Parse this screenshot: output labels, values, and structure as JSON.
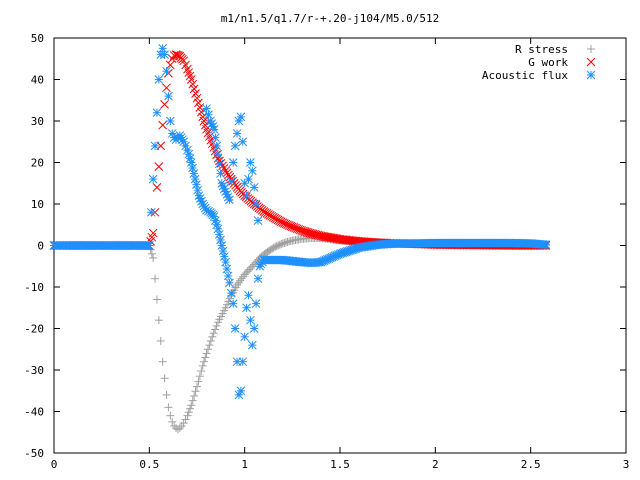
{
  "chart_data": {
    "type": "scatter",
    "title": "m1/n1.5/q1.7/r-+.20-j104/M5.0/512",
    "xlabel": "",
    "ylabel": "",
    "xlim": [
      0,
      3
    ],
    "ylim": [
      -50,
      50
    ],
    "xticks": [
      "0",
      "0.5",
      "1",
      "1.5",
      "2",
      "2.5",
      "3"
    ],
    "yticks": [
      "50",
      "40",
      "30",
      "20",
      "10",
      "0",
      "-10",
      "-20",
      "-30",
      "-40",
      "-50"
    ],
    "xtick_values": [
      0,
      0.5,
      1,
      1.5,
      2,
      2.5,
      3
    ],
    "ytick_values": [
      50,
      40,
      30,
      20,
      10,
      0,
      -10,
      -20,
      -30,
      -40,
      -50
    ],
    "grid": false,
    "legend_position": "top-right",
    "series": [
      {
        "name": "R stress",
        "marker": "plus",
        "color": "#a0a0a0",
        "points": [
          [
            0.0,
            0
          ],
          [
            0.5,
            0
          ],
          [
            0.52,
            -3
          ],
          [
            0.53,
            -8
          ],
          [
            0.54,
            -13
          ],
          [
            0.55,
            -18
          ],
          [
            0.56,
            -23
          ],
          [
            0.57,
            -28
          ],
          [
            0.58,
            -32
          ],
          [
            0.59,
            -36
          ],
          [
            0.6,
            -39
          ],
          [
            0.61,
            -41
          ],
          [
            0.62,
            -42.5
          ],
          [
            0.63,
            -43.5
          ],
          [
            0.64,
            -44
          ],
          [
            0.65,
            -44.3
          ],
          [
            0.66,
            -44
          ],
          [
            0.67,
            -43.5
          ],
          [
            0.68,
            -42.8
          ],
          [
            0.7,
            -41
          ],
          [
            0.72,
            -38.5
          ],
          [
            0.75,
            -34
          ],
          [
            0.78,
            -29
          ],
          [
            0.8,
            -26
          ],
          [
            0.83,
            -22
          ],
          [
            0.86,
            -18.5
          ],
          [
            0.9,
            -15
          ],
          [
            0.93,
            -12
          ],
          [
            0.96,
            -9.5
          ],
          [
            1.0,
            -7
          ],
          [
            1.04,
            -5
          ],
          [
            1.08,
            -3
          ],
          [
            1.12,
            -1.5
          ],
          [
            1.16,
            -0.3
          ],
          [
            1.2,
            0.5
          ],
          [
            1.25,
            1.2
          ],
          [
            1.3,
            1.6
          ],
          [
            1.35,
            1.8
          ],
          [
            1.4,
            1.8
          ],
          [
            1.45,
            1.5
          ],
          [
            1.5,
            1.2
          ],
          [
            1.6,
            0.8
          ],
          [
            1.7,
            0.5
          ],
          [
            1.8,
            0.4
          ],
          [
            1.9,
            0.3
          ],
          [
            2.0,
            0.3
          ],
          [
            2.2,
            0.2
          ],
          [
            2.4,
            0.1
          ],
          [
            2.58,
            0.1
          ]
        ]
      },
      {
        "name": "G work",
        "marker": "cross",
        "color": "#ff0000",
        "points": [
          [
            0.0,
            0
          ],
          [
            0.5,
            0
          ],
          [
            0.52,
            3
          ],
          [
            0.53,
            8
          ],
          [
            0.54,
            14
          ],
          [
            0.55,
            19
          ],
          [
            0.56,
            24
          ],
          [
            0.57,
            29
          ],
          [
            0.58,
            34
          ],
          [
            0.59,
            38
          ],
          [
            0.6,
            41.5
          ],
          [
            0.61,
            43.5
          ],
          [
            0.62,
            45
          ],
          [
            0.63,
            45.8
          ],
          [
            0.64,
            46
          ],
          [
            0.66,
            45.6
          ],
          [
            0.68,
            44.5
          ],
          [
            0.7,
            42.5
          ],
          [
            0.72,
            40
          ],
          [
            0.75,
            35.5
          ],
          [
            0.78,
            31
          ],
          [
            0.8,
            28
          ],
          [
            0.83,
            24.5
          ],
          [
            0.86,
            21
          ],
          [
            0.9,
            18
          ],
          [
            0.93,
            16
          ],
          [
            0.96,
            14
          ],
          [
            1.0,
            12
          ],
          [
            1.05,
            10
          ],
          [
            1.1,
            8.2
          ],
          [
            1.15,
            6.8
          ],
          [
            1.2,
            5.5
          ],
          [
            1.25,
            4.5
          ],
          [
            1.3,
            3.6
          ],
          [
            1.35,
            2.9
          ],
          [
            1.4,
            2.3
          ],
          [
            1.5,
            1.5
          ],
          [
            1.6,
            1.0
          ],
          [
            1.7,
            0.7
          ],
          [
            1.8,
            0.5
          ],
          [
            1.9,
            0.4
          ],
          [
            2.0,
            0.2
          ],
          [
            2.2,
            0.1
          ],
          [
            2.4,
            0.0
          ],
          [
            2.58,
            0.0
          ]
        ]
      },
      {
        "name": "Acoustic flux",
        "marker": "star",
        "color": "#1e90ff",
        "points": [
          [
            0.0,
            0
          ],
          [
            0.1,
            0
          ],
          [
            0.2,
            0
          ],
          [
            0.3,
            0
          ],
          [
            0.4,
            0
          ],
          [
            0.5,
            0
          ],
          [
            0.51,
            8
          ],
          [
            0.52,
            16
          ],
          [
            0.53,
            24
          ],
          [
            0.54,
            32
          ],
          [
            0.55,
            40
          ],
          [
            0.56,
            46
          ],
          [
            0.57,
            47.5
          ],
          [
            0.58,
            46
          ],
          [
            0.59,
            42
          ],
          [
            0.6,
            36
          ],
          [
            0.61,
            30
          ],
          [
            0.62,
            27
          ],
          [
            0.63,
            26
          ],
          [
            0.64,
            25.5
          ],
          [
            0.65,
            26
          ],
          [
            0.66,
            26.5
          ],
          [
            0.68,
            25
          ],
          [
            0.7,
            23
          ],
          [
            0.72,
            20
          ],
          [
            0.74,
            16
          ],
          [
            0.76,
            12
          ],
          [
            0.78,
            10
          ],
          [
            0.8,
            8.5
          ],
          [
            0.82,
            8
          ],
          [
            0.84,
            7
          ],
          [
            0.86,
            4
          ],
          [
            0.88,
            0
          ],
          [
            0.9,
            -4
          ],
          [
            0.92,
            -9
          ],
          [
            0.94,
            -14
          ],
          [
            0.95,
            -20
          ],
          [
            0.96,
            -28
          ],
          [
            0.97,
            -36
          ],
          [
            0.98,
            -35
          ],
          [
            0.99,
            -28
          ],
          [
            1.0,
            -22
          ],
          [
            1.01,
            -15
          ],
          [
            1.02,
            -12
          ],
          [
            1.03,
            -18
          ],
          [
            1.04,
            -24
          ],
          [
            1.05,
            -20
          ],
          [
            1.06,
            -14
          ],
          [
            1.07,
            -8
          ],
          [
            1.08,
            -5
          ],
          [
            1.1,
            -3.5
          ],
          [
            1.2,
            -3.5
          ],
          [
            1.3,
            -4
          ],
          [
            1.35,
            -4.2
          ],
          [
            1.4,
            -4
          ],
          [
            1.45,
            -3
          ],
          [
            1.5,
            -2
          ],
          [
            1.6,
            -0.5
          ],
          [
            1.7,
            0.2
          ],
          [
            1.8,
            0.5
          ],
          [
            1.9,
            0.5
          ],
          [
            2.0,
            0.6
          ],
          [
            2.2,
            0.6
          ],
          [
            2.4,
            0.6
          ],
          [
            2.5,
            0.5
          ],
          [
            2.58,
            0.2
          ]
        ]
      },
      {
        "name": "",
        "marker": "star",
        "color": "#1e90ff",
        "points": [
          [
            0.8,
            33
          ],
          [
            0.82,
            30
          ],
          [
            0.84,
            28
          ],
          [
            0.86,
            22
          ],
          [
            0.88,
            15
          ],
          [
            0.9,
            13
          ],
          [
            0.92,
            11
          ],
          [
            0.94,
            20
          ],
          [
            0.95,
            24
          ],
          [
            0.96,
            27
          ],
          [
            0.97,
            30
          ],
          [
            0.98,
            31
          ],
          [
            0.99,
            25
          ],
          [
            1.0,
            15
          ],
          [
            1.01,
            12
          ],
          [
            1.02,
            16
          ],
          [
            1.03,
            20
          ],
          [
            1.04,
            18
          ],
          [
            1.05,
            14
          ],
          [
            1.06,
            10
          ],
          [
            1.07,
            6
          ]
        ]
      }
    ]
  }
}
